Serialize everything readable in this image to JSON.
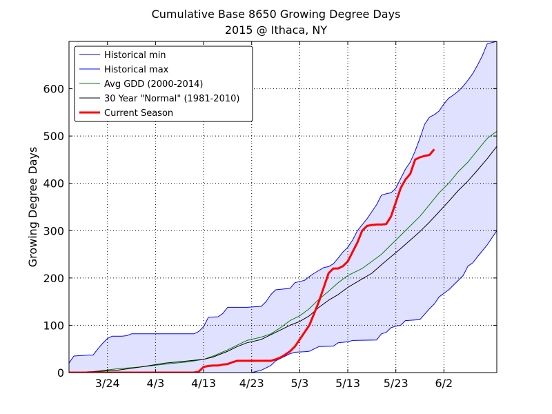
{
  "chart_data": {
    "type": "line",
    "title": "Cumulative Base 8650 Growing Degree Days",
    "subtitle": "2015 @ Ithaca, NY",
    "xlabel": "",
    "ylabel": "Growing Degree Days",
    "x_unit": "day_of_year",
    "xlim": [
      75,
      164
    ],
    "ylim": [
      0,
      700
    ],
    "x_ticks": [
      {
        "day": 83,
        "label": "3/24"
      },
      {
        "day": 93,
        "label": "4/3"
      },
      {
        "day": 103,
        "label": "4/13"
      },
      {
        "day": 113,
        "label": "4/23"
      },
      {
        "day": 123,
        "label": "5/3"
      },
      {
        "day": 133,
        "label": "5/13"
      },
      {
        "day": 143,
        "label": "5/23"
      },
      {
        "day": 153,
        "label": "6/2"
      }
    ],
    "y_ticks": [
      0,
      100,
      200,
      300,
      400,
      500,
      600
    ],
    "grid": true,
    "legend": "top-left",
    "series": [
      {
        "name": "Historical min",
        "color": "#0000ff",
        "width": 1,
        "points": [
          [
            75,
            0
          ],
          [
            85,
            0
          ],
          [
            95,
            0
          ],
          [
            105,
            0
          ],
          [
            110,
            0
          ],
          [
            113,
            0
          ],
          [
            115,
            5
          ],
          [
            117,
            15
          ],
          [
            118,
            25
          ],
          [
            120,
            35
          ],
          [
            121,
            40
          ],
          [
            122,
            43
          ],
          [
            124,
            44
          ],
          [
            125,
            45
          ],
          [
            127,
            55
          ],
          [
            130,
            56
          ],
          [
            131,
            63
          ],
          [
            133,
            65
          ],
          [
            134,
            68
          ],
          [
            139,
            69
          ],
          [
            140,
            82
          ],
          [
            141,
            85
          ],
          [
            142,
            95
          ],
          [
            143,
            98
          ],
          [
            144,
            100
          ],
          [
            145,
            110
          ],
          [
            148,
            112
          ],
          [
            150,
            135
          ],
          [
            151,
            145
          ],
          [
            152,
            160
          ],
          [
            154,
            175
          ],
          [
            155,
            185
          ],
          [
            157,
            205
          ],
          [
            158,
            225
          ],
          [
            159,
            232
          ],
          [
            160,
            245
          ],
          [
            162,
            270
          ],
          [
            164,
            300
          ]
        ]
      },
      {
        "name": "Historical max",
        "color": "#0000ff",
        "width": 1,
        "points": [
          [
            75,
            20
          ],
          [
            76,
            35
          ],
          [
            79,
            37
          ],
          [
            80,
            37
          ],
          [
            81,
            50
          ],
          [
            82,
            62
          ],
          [
            83,
            72
          ],
          [
            84,
            77
          ],
          [
            86,
            77
          ],
          [
            87,
            78
          ],
          [
            88,
            82
          ],
          [
            100,
            82
          ],
          [
            101,
            82
          ],
          [
            102,
            87
          ],
          [
            103,
            97
          ],
          [
            104,
            117
          ],
          [
            106,
            118
          ],
          [
            107,
            125
          ],
          [
            108,
            138
          ],
          [
            112,
            138
          ],
          [
            115,
            140
          ],
          [
            116,
            150
          ],
          [
            117,
            165
          ],
          [
            118,
            175
          ],
          [
            121,
            178
          ],
          [
            122,
            190
          ],
          [
            124,
            195
          ],
          [
            125,
            203
          ],
          [
            126,
            210
          ],
          [
            128,
            222
          ],
          [
            129,
            224
          ],
          [
            130,
            230
          ],
          [
            131,
            242
          ],
          [
            132,
            255
          ],
          [
            133,
            265
          ],
          [
            134,
            280
          ],
          [
            135,
            300
          ],
          [
            137,
            325
          ],
          [
            139,
            355
          ],
          [
            140,
            375
          ],
          [
            141,
            378
          ],
          [
            142,
            380
          ],
          [
            143,
            390
          ],
          [
            145,
            430
          ],
          [
            146,
            445
          ],
          [
            147,
            468
          ],
          [
            148,
            495
          ],
          [
            149,
            525
          ],
          [
            150,
            540
          ],
          [
            151,
            545
          ],
          [
            152,
            553
          ],
          [
            153,
            568
          ],
          [
            154,
            580
          ],
          [
            155,
            587
          ],
          [
            156,
            595
          ],
          [
            157,
            605
          ],
          [
            158,
            618
          ],
          [
            159,
            632
          ],
          [
            160,
            650
          ],
          [
            161,
            670
          ],
          [
            162,
            695
          ],
          [
            164,
            700
          ]
        ]
      },
      {
        "name": "Avg GDD (2000-2014)",
        "color": "#008000",
        "width": 1,
        "points": [
          [
            75,
            0
          ],
          [
            80,
            2
          ],
          [
            85,
            8
          ],
          [
            90,
            12
          ],
          [
            95,
            18
          ],
          [
            100,
            23
          ],
          [
            103,
            28
          ],
          [
            105,
            35
          ],
          [
            108,
            48
          ],
          [
            110,
            58
          ],
          [
            112,
            68
          ],
          [
            115,
            75
          ],
          [
            117,
            82
          ],
          [
            119,
            95
          ],
          [
            121,
            110
          ],
          [
            123,
            120
          ],
          [
            125,
            135
          ],
          [
            127,
            155
          ],
          [
            129,
            172
          ],
          [
            131,
            190
          ],
          [
            133,
            205
          ],
          [
            136,
            220
          ],
          [
            138,
            235
          ],
          [
            140,
            250
          ],
          [
            142,
            270
          ],
          [
            144,
            290
          ],
          [
            146,
            310
          ],
          [
            148,
            330
          ],
          [
            150,
            355
          ],
          [
            152,
            380
          ],
          [
            154,
            400
          ],
          [
            156,
            425
          ],
          [
            158,
            445
          ],
          [
            160,
            470
          ],
          [
            162,
            495
          ],
          [
            164,
            510
          ]
        ]
      },
      {
        "name": "30 Year \"Normal\" (1981-2010)",
        "color": "#000000",
        "width": 1,
        "points": [
          [
            75,
            0
          ],
          [
            80,
            2
          ],
          [
            85,
            5
          ],
          [
            90,
            12
          ],
          [
            95,
            20
          ],
          [
            100,
            25
          ],
          [
            103,
            28
          ],
          [
            105,
            33
          ],
          [
            108,
            45
          ],
          [
            110,
            55
          ],
          [
            112,
            63
          ],
          [
            115,
            70
          ],
          [
            117,
            80
          ],
          [
            119,
            90
          ],
          [
            121,
            100
          ],
          [
            123,
            108
          ],
          [
            125,
            120
          ],
          [
            127,
            138
          ],
          [
            129,
            153
          ],
          [
            131,
            165
          ],
          [
            133,
            180
          ],
          [
            136,
            198
          ],
          [
            138,
            210
          ],
          [
            140,
            228
          ],
          [
            142,
            245
          ],
          [
            144,
            262
          ],
          [
            146,
            280
          ],
          [
            148,
            298
          ],
          [
            150,
            318
          ],
          [
            152,
            340
          ],
          [
            154,
            362
          ],
          [
            156,
            385
          ],
          [
            158,
            405
          ],
          [
            160,
            428
          ],
          [
            162,
            452
          ],
          [
            164,
            478
          ]
        ]
      },
      {
        "name": "Current Season",
        "color": "#ff0000",
        "width": 3,
        "points": [
          [
            75,
            0
          ],
          [
            100,
            0
          ],
          [
            101,
            0
          ],
          [
            102,
            2
          ],
          [
            103,
            12
          ],
          [
            104,
            14
          ],
          [
            105,
            15
          ],
          [
            106,
            15
          ],
          [
            107,
            17
          ],
          [
            108,
            18
          ],
          [
            109,
            22
          ],
          [
            110,
            25
          ],
          [
            112,
            25
          ],
          [
            115,
            25
          ],
          [
            116,
            25
          ],
          [
            117,
            25
          ],
          [
            118,
            28
          ],
          [
            119,
            32
          ],
          [
            120,
            38
          ],
          [
            121,
            45
          ],
          [
            122,
            55
          ],
          [
            123,
            70
          ],
          [
            124,
            85
          ],
          [
            125,
            100
          ],
          [
            126,
            125
          ],
          [
            127,
            150
          ],
          [
            128,
            180
          ],
          [
            129,
            210
          ],
          [
            130,
            220
          ],
          [
            131,
            220
          ],
          [
            132,
            225
          ],
          [
            133,
            235
          ],
          [
            134,
            255
          ],
          [
            135,
            275
          ],
          [
            136,
            300
          ],
          [
            137,
            310
          ],
          [
            138,
            312
          ],
          [
            139,
            313
          ],
          [
            140,
            313
          ],
          [
            141,
            314
          ],
          [
            142,
            330
          ],
          [
            143,
            360
          ],
          [
            144,
            390
          ],
          [
            145,
            408
          ],
          [
            146,
            420
          ],
          [
            147,
            450
          ],
          [
            148,
            455
          ],
          [
            149,
            458
          ],
          [
            150,
            460
          ],
          [
            151,
            472
          ]
        ]
      }
    ]
  }
}
